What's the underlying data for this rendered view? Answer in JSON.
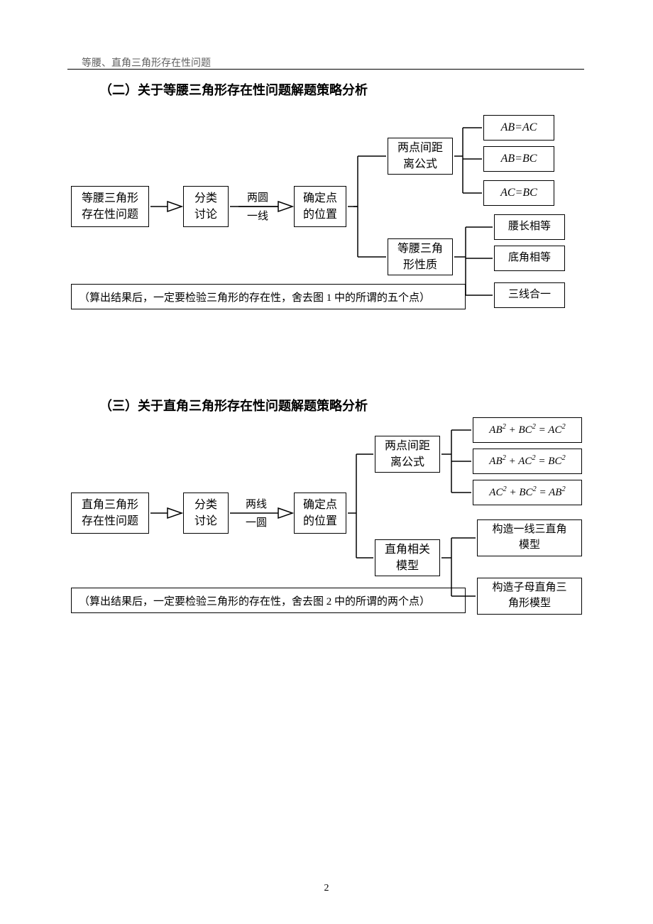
{
  "header": {
    "text": "等腰、直角三角形存在性问题"
  },
  "page_number": "2",
  "sectionA": {
    "title": "（二）关于等腰三角形存在性问题解题策略分析",
    "nodes": {
      "start": "等腰三角形\n存在性问题",
      "classify": "分类\n讨论",
      "locate": "确定点\n的位置",
      "distance": "两点间距\n离公式",
      "property": "等腰三角\n形性质",
      "r1": "AB=AC",
      "r2": "AB=BC",
      "r3": "AC=BC",
      "p1": "腰长相等",
      "p2": "底角相等",
      "p3": "三线合一"
    },
    "edge_labels": {
      "top": "两圆",
      "bottom": "一线"
    },
    "note": "（算出结果后，一定要检验三角形的存在性，舍去图 1 中的所谓的五个点）"
  },
  "sectionB": {
    "title": "（三）关于直角三角形存在性问题解题策略分析",
    "nodes": {
      "start": "直角三角形\n存在性问题",
      "classify": "分类\n讨论",
      "locate": "确定点\n的位置",
      "distance": "两点间距\n离公式",
      "property": "直角相关\n模型",
      "p1": "构造一线三直角\n模型",
      "p2": "构造子母直角三\n角形模型"
    },
    "formulas": {
      "f1": {
        "a": "AB",
        "b": "BC",
        "c": "AC"
      },
      "f2": {
        "a": "AB",
        "b": "AC",
        "c": "BC"
      },
      "f3": {
        "a": "AC",
        "b": "BC",
        "c": "AB"
      }
    },
    "edge_labels": {
      "top": "两线",
      "bottom": "一圆"
    },
    "note": "（算出结果后，一定要检验三角形的存在性，舍去图 2 中的所谓的两个点）"
  },
  "colors": {
    "text": "#000000",
    "header_text": "#606060",
    "border": "#000000",
    "background": "#ffffff"
  }
}
